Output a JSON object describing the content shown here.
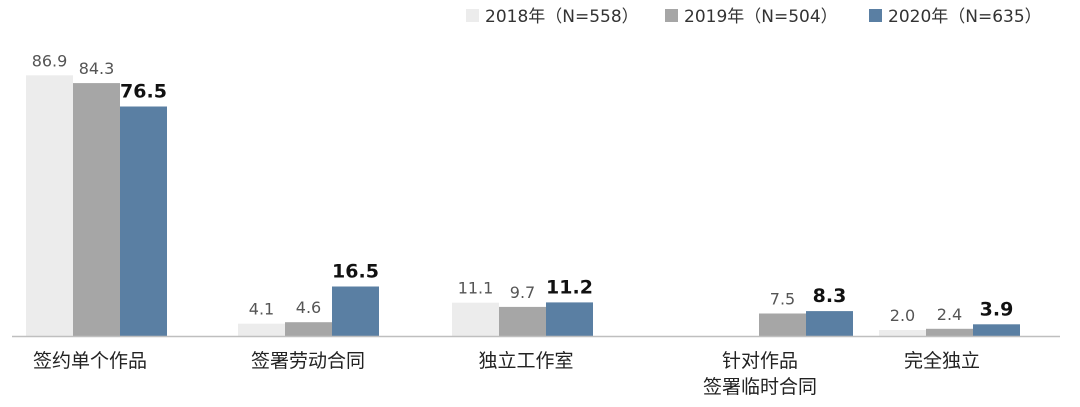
{
  "chart_data": {
    "type": "bar",
    "categories": [
      [
        "签约单个作品"
      ],
      [
        "签署劳动合同"
      ],
      [
        "独立工作室"
      ],
      [
        "针对作品",
        "签署临时合同"
      ],
      [
        "完全独立"
      ]
    ],
    "series": [
      {
        "name": "2018年（N=558）",
        "color": "#ececec",
        "values": [
          86.9,
          4.1,
          11.1,
          null,
          2.0
        ]
      },
      {
        "name": "2019年（N=504）",
        "color": "#a6a6a6",
        "values": [
          84.3,
          4.6,
          9.7,
          7.5,
          2.4
        ]
      },
      {
        "name": "2020年（N=635）",
        "color": "#5a7fa3",
        "values": [
          76.5,
          16.5,
          11.2,
          8.3,
          3.9
        ],
        "bold_labels": true
      }
    ],
    "value_labels": [
      [
        "86.9",
        "4.1",
        "11.1",
        "",
        "2.0"
      ],
      [
        "84.3",
        "4.6",
        "9.7",
        "7.5",
        "2.4"
      ],
      [
        "76.5",
        "16.5",
        "11.2",
        "8.3",
        "3.9"
      ]
    ],
    "ylim": [
      0,
      100
    ],
    "axis_color": "#bfbfbf",
    "legend_position": "top-right",
    "grid": false
  }
}
